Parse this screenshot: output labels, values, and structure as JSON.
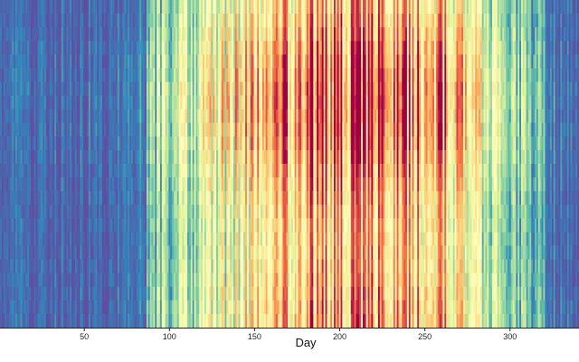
{
  "chart_data": {
    "type": "heatmap",
    "xlabel": "Day",
    "ylabel": "",
    "xlim": [
      1,
      340
    ],
    "x_ticks": [
      50,
      100,
      150,
      200,
      250,
      300
    ],
    "y_visible": false,
    "colormap": "spectral-reversed",
    "value_range": [
      0,
      1
    ],
    "colormap_stops": [
      "#5e4fa2",
      "#3288bd",
      "#66c2a5",
      "#abdda4",
      "#e6f598",
      "#ffffbf",
      "#fee08b",
      "#fdae61",
      "#f46d43",
      "#d53e4f",
      "#9e0142"
    ],
    "rows": 24,
    "day_intensity_profile": [
      {
        "day": 1,
        "value": 0.06
      },
      {
        "day": 30,
        "value": 0.08
      },
      {
        "day": 60,
        "value": 0.1
      },
      {
        "day": 84,
        "value": 0.14
      },
      {
        "day": 95,
        "value": 0.3
      },
      {
        "day": 118,
        "value": 0.38
      },
      {
        "day": 130,
        "value": 0.48
      },
      {
        "day": 150,
        "value": 0.58
      },
      {
        "day": 165,
        "value": 0.72
      },
      {
        "day": 190,
        "value": 0.78
      },
      {
        "day": 215,
        "value": 0.8
      },
      {
        "day": 240,
        "value": 0.74
      },
      {
        "day": 262,
        "value": 0.7
      },
      {
        "day": 282,
        "value": 0.48
      },
      {
        "day": 300,
        "value": 0.3
      },
      {
        "day": 320,
        "value": 0.16
      },
      {
        "day": 340,
        "value": 0.08
      }
    ],
    "row_intensity_profile": [
      0.55,
      0.62,
      0.7,
      0.78,
      0.86,
      0.93,
      0.98,
      1.0,
      0.98,
      0.94,
      0.88,
      0.8,
      0.72,
      0.66,
      0.6,
      0.55,
      0.52,
      0.5,
      0.5,
      0.52,
      0.56,
      0.6,
      0.63,
      0.65
    ]
  }
}
